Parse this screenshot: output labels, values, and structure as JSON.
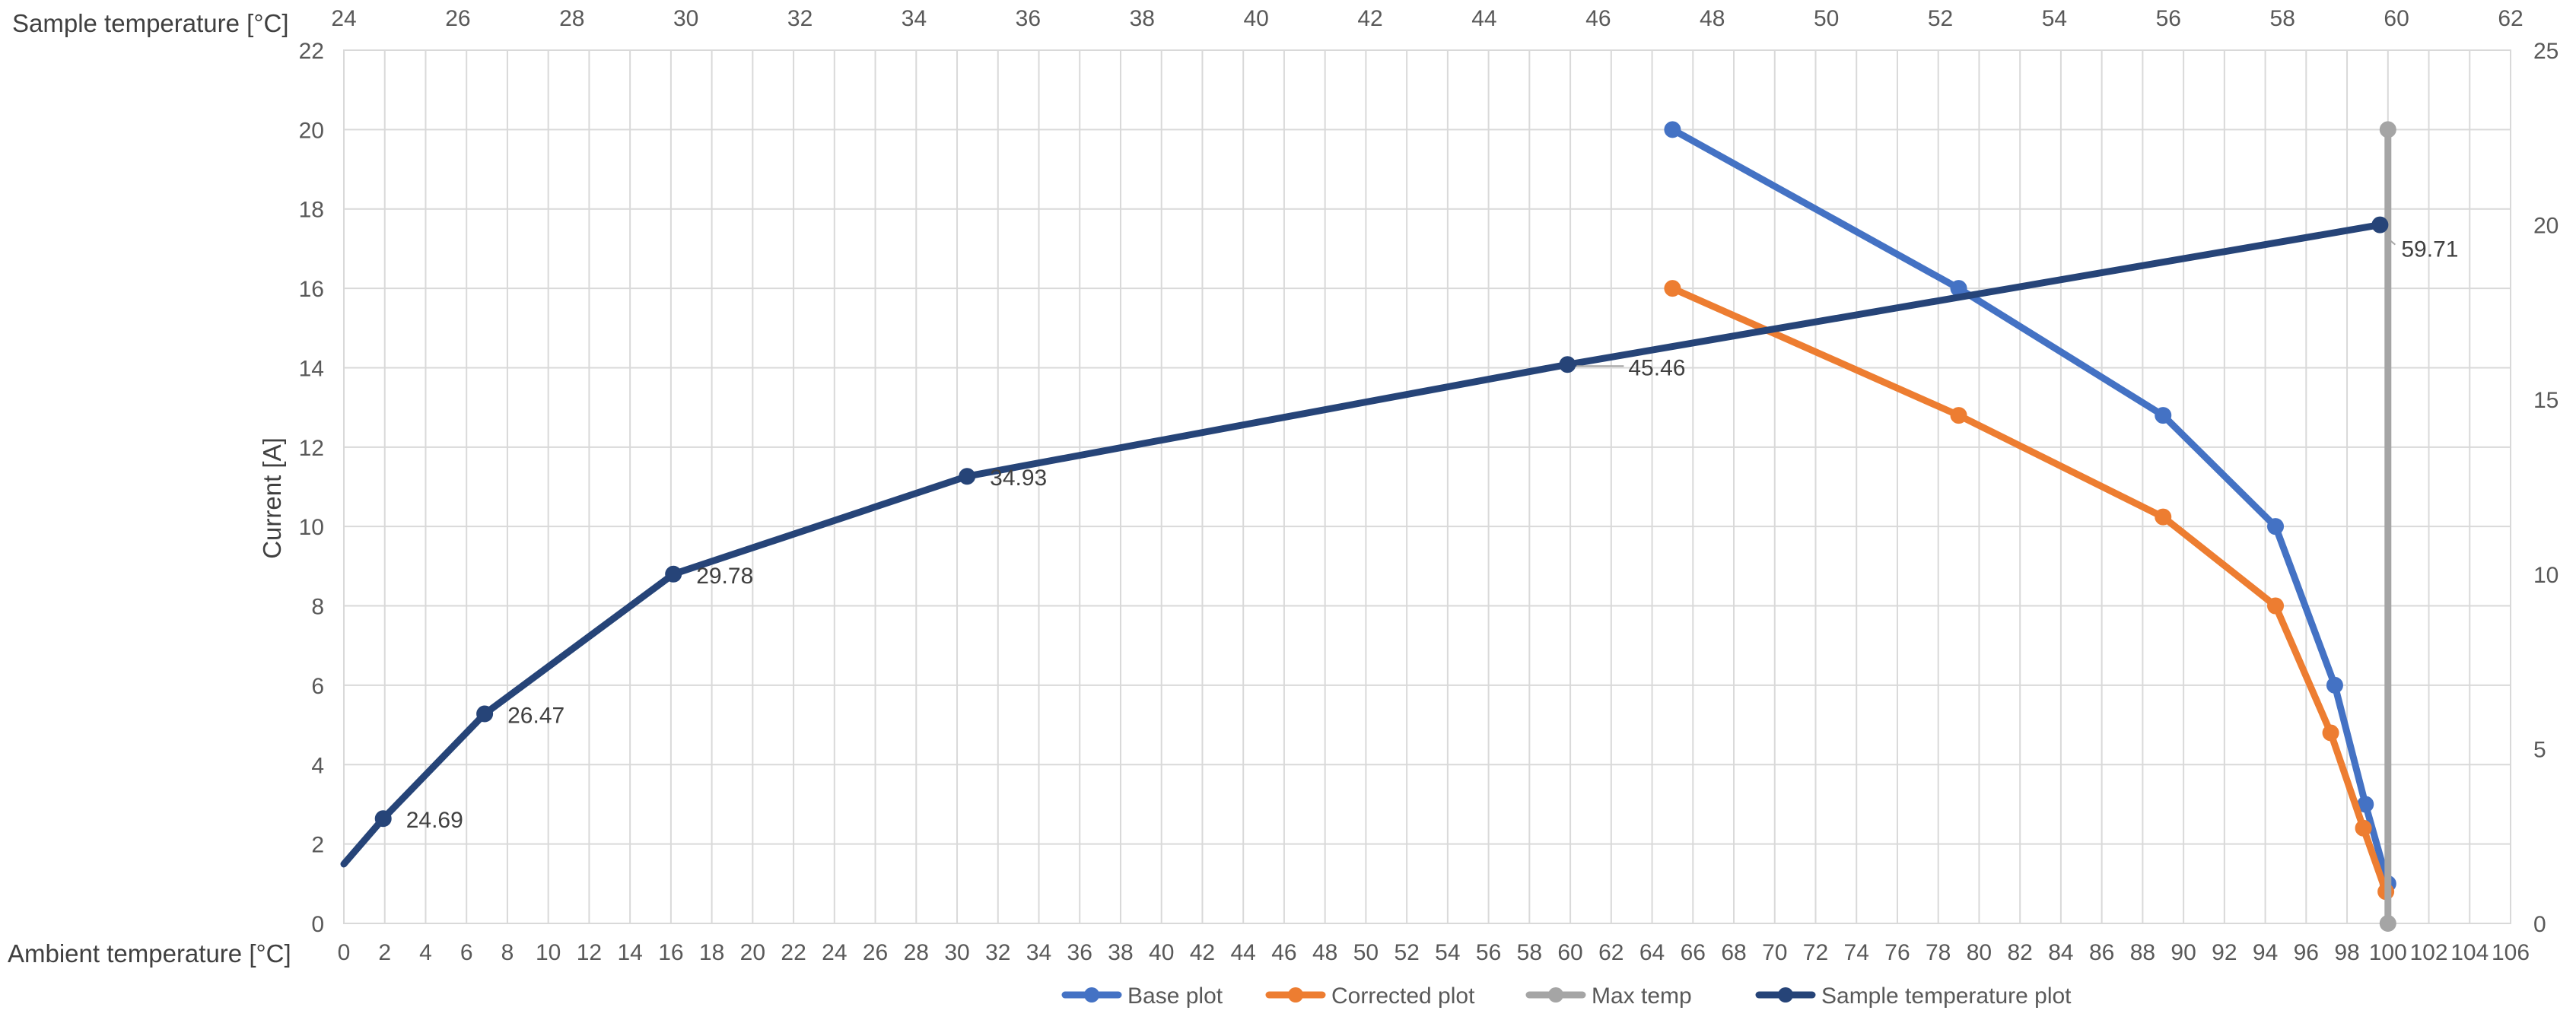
{
  "chart_data": {
    "type": "line",
    "title": "",
    "grid": true,
    "legend_position": "bottom",
    "axes": {
      "x_bottom": {
        "label": "Ambient temperature [°C]",
        "range": [
          0,
          106
        ],
        "major_unit": 2
      },
      "x_top": {
        "label": "Sample temperature  [°C]",
        "range": [
          24,
          62
        ],
        "major_unit": 2
      },
      "y_left": {
        "label": "Current  [A]",
        "range": [
          0,
          22
        ],
        "major_unit": 2
      },
      "y_right": {
        "label": "",
        "range": [
          0,
          25
        ],
        "major_unit": 5
      }
    },
    "series": [
      {
        "name": "Base plot",
        "color": "#4472C4",
        "x_axis": "x_bottom",
        "y_axis": "y_left",
        "points": [
          [
            65,
            20
          ],
          [
            79,
            16
          ],
          [
            89,
            12.8
          ],
          [
            94.5,
            10
          ],
          [
            97.4,
            6
          ],
          [
            98.9,
            3
          ],
          [
            100,
            1
          ]
        ]
      },
      {
        "name": "Corrected plot",
        "color": "#ED7D31",
        "x_axis": "x_bottom",
        "y_axis": "y_left",
        "points": [
          [
            65,
            16
          ],
          [
            79,
            12.8
          ],
          [
            89,
            10.24
          ],
          [
            94.5,
            8
          ],
          [
            97.2,
            4.8
          ],
          [
            98.8,
            2.4
          ],
          [
            99.9,
            0.8
          ]
        ]
      },
      {
        "name": "Max temp",
        "color": "#A5A5A5",
        "x_axis": "x_bottom",
        "y_axis": "y_left",
        "points": [
          [
            100,
            20
          ],
          [
            100,
            0
          ]
        ]
      },
      {
        "name": "Sample temperature plot",
        "color": "#264478",
        "x_axis": "x_top",
        "y_axis": "y_right",
        "points": [
          [
            24,
            1.7
          ],
          [
            24.69,
            3
          ],
          [
            26.47,
            6
          ],
          [
            29.78,
            10
          ],
          [
            34.93,
            12.8
          ],
          [
            45.46,
            16
          ],
          [
            59.71,
            20
          ]
        ],
        "data_labels": [
          "",
          "24.69",
          "26.47",
          "29.78",
          "34.93",
          "45.46",
          "59.71"
        ]
      }
    ],
    "tick_labels": {
      "x_bottom": [
        "0",
        "2",
        "4",
        "6",
        "8",
        "10",
        "12",
        "14",
        "16",
        "18",
        "20",
        "22",
        "24",
        "26",
        "28",
        "30",
        "32",
        "34",
        "36",
        "38",
        "40",
        "42",
        "44",
        "46",
        "48",
        "50",
        "52",
        "54",
        "56",
        "58",
        "60",
        "62",
        "64",
        "66",
        "68",
        "70",
        "72",
        "74",
        "76",
        "78",
        "80",
        "82",
        "84",
        "86",
        "88",
        "90",
        "92",
        "94",
        "96",
        "98",
        "100",
        "102",
        "104",
        "106"
      ],
      "x_top": [
        "24",
        "26",
        "28",
        "30",
        "32",
        "34",
        "36",
        "38",
        "40",
        "42",
        "44",
        "46",
        "48",
        "50",
        "52",
        "54",
        "56",
        "58",
        "60",
        "62"
      ],
      "y_left": [
        "0",
        "2",
        "4",
        "6",
        "8",
        "10",
        "12",
        "14",
        "16",
        "18",
        "20",
        "22"
      ],
      "y_right": [
        "0",
        "5",
        "10",
        "15",
        "20",
        "25"
      ]
    }
  }
}
